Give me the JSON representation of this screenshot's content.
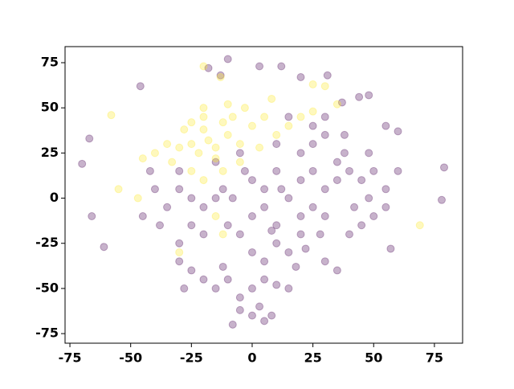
{
  "chart_data": {
    "type": "scatter",
    "xlim": [
      -77,
      86.6
    ],
    "ylim": [
      -80.3,
      83.9
    ],
    "xticks": [
      -75,
      -50,
      -25,
      0,
      25,
      50,
      75
    ],
    "yticks": [
      -75,
      -50,
      -25,
      0,
      25,
      50,
      75
    ],
    "grid": false,
    "opacity": 0.3,
    "series": [
      {
        "color": "#440154",
        "x": [
          0,
          5,
          10,
          15,
          20,
          -5,
          10,
          15,
          20,
          25,
          5,
          0,
          10,
          20,
          25,
          30,
          -8,
          -10,
          5,
          0,
          18,
          22,
          28,
          30,
          -3,
          12,
          8,
          -12,
          -15,
          -5,
          -25,
          -30,
          -35,
          -20,
          -40,
          -30,
          -25,
          -38,
          -45,
          -20,
          -30,
          -15,
          -42,
          45,
          50,
          55,
          48,
          40,
          38,
          42,
          50,
          55,
          60,
          35,
          48,
          45,
          40,
          30,
          35,
          -20,
          -25,
          -15,
          -28,
          -10,
          0,
          5,
          -5,
          10,
          15,
          0,
          -5,
          5,
          -8,
          3,
          8,
          -12,
          -30,
          10,
          20,
          25,
          30,
          25,
          15,
          35,
          38,
          30,
          -10,
          -18,
          3,
          12,
          20,
          31,
          -46,
          -67,
          -70,
          -66,
          -61,
          78,
          79,
          57,
          55,
          48,
          60,
          44,
          37,
          -13
        ],
        "values": [
          -10,
          -5,
          -15,
          0,
          -10,
          -20,
          -25,
          -30,
          -20,
          -5,
          5,
          10,
          15,
          10,
          15,
          5,
          0,
          -15,
          -35,
          -30,
          -38,
          -28,
          -20,
          -10,
          15,
          5,
          -18,
          5,
          20,
          25,
          0,
          5,
          -5,
          -5,
          5,
          15,
          -15,
          -15,
          -10,
          -20,
          -25,
          0,
          15,
          10,
          15,
          5,
          0,
          15,
          25,
          -5,
          -10,
          -5,
          15,
          10,
          25,
          -15,
          -20,
          -35,
          -40,
          -45,
          -40,
          -50,
          -50,
          -45,
          -50,
          -45,
          -55,
          -48,
          -50,
          -65,
          -62,
          -68,
          -70,
          -60,
          -65,
          -38,
          -35,
          30,
          25,
          30,
          35,
          40,
          45,
          20,
          35,
          45,
          77,
          72,
          73,
          73,
          67,
          68,
          62,
          33,
          19,
          -10,
          -27,
          -1,
          17,
          -28,
          40,
          57,
          37,
          56,
          53,
          68
        ]
      },
      {
        "color": "#fde725",
        "x": [
          -18,
          -20,
          -15,
          -25,
          -10,
          -22,
          -28,
          -12,
          -30,
          -15,
          -5,
          -8,
          -25,
          -20,
          -33,
          -35,
          -40,
          0,
          5,
          10,
          15,
          20,
          -3,
          -20,
          -12,
          -25,
          -10,
          -20,
          25,
          8,
          30,
          25,
          35,
          -13,
          -20,
          -58,
          69,
          -55,
          -30,
          -47,
          -15,
          -12,
          -45,
          -5,
          3
        ],
        "values": [
          32,
          38,
          28,
          30,
          35,
          25,
          38,
          42,
          28,
          22,
          30,
          45,
          42,
          45,
          20,
          30,
          25,
          40,
          45,
          35,
          40,
          45,
          50,
          50,
          15,
          15,
          52,
          10,
          48,
          55,
          62,
          63,
          52,
          67,
          73,
          46,
          -15,
          5,
          -30,
          0,
          -10,
          -20,
          22,
          20,
          28
        ]
      }
    ]
  }
}
